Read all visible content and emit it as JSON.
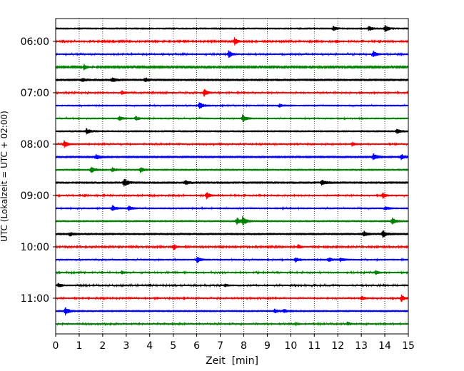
{
  "chart_data": {
    "type": "line",
    "title": "",
    "xlabel": "Zeit  [min]",
    "ylabel": "UTC (Lokalzeit = UTC + 02:00)",
    "xlim": [
      0,
      15
    ],
    "x_ticks": [
      0,
      1,
      2,
      3,
      4,
      5,
      6,
      7,
      8,
      9,
      10,
      11,
      12,
      13,
      14,
      15
    ],
    "y_tick_labels": [
      "06:00",
      "07:00",
      "08:00",
      "09:00",
      "10:00",
      "11:00"
    ],
    "grid": "vertical dotted",
    "legend": "none",
    "trace_colors": [
      "#000000",
      "#ff0000",
      "#0000ff",
      "#008000"
    ],
    "traces": [
      {
        "start": "05:45",
        "amplitude": 0.25,
        "events": [
          [
            11.8,
            0.5
          ],
          [
            13.3,
            0.6
          ],
          [
            14.0,
            0.9
          ]
        ]
      },
      {
        "start": "06:00",
        "amplitude": 0.18,
        "events": [
          [
            7.6,
            1.0
          ],
          [
            11.9,
            0.4
          ]
        ]
      },
      {
        "start": "06:15",
        "amplitude": 0.2,
        "events": [
          [
            7.35,
            1.0
          ],
          [
            13.5,
            0.9
          ]
        ]
      },
      {
        "start": "06:30",
        "amplitude": 0.15,
        "events": [
          [
            1.2,
            0.9
          ]
        ]
      },
      {
        "start": "06:45",
        "amplitude": 0.3,
        "events": [
          [
            1.1,
            0.45
          ],
          [
            2.4,
            0.5
          ],
          [
            3.8,
            0.5
          ]
        ]
      },
      {
        "start": "07:00",
        "amplitude": 0.2,
        "events": [
          [
            2.8,
            0.6
          ],
          [
            6.3,
            1.0
          ]
        ]
      },
      {
        "start": "07:15",
        "amplitude": 0.22,
        "events": [
          [
            6.1,
            1.0
          ],
          [
            9.5,
            0.4
          ]
        ]
      },
      {
        "start": "07:30",
        "amplitude": 0.22,
        "events": [
          [
            2.7,
            0.5
          ],
          [
            3.4,
            0.5
          ],
          [
            7.95,
            0.9
          ]
        ]
      },
      {
        "start": "07:45",
        "amplitude": 0.25,
        "events": [
          [
            1.3,
            0.7
          ],
          [
            14.5,
            0.6
          ]
        ]
      },
      {
        "start": "08:00",
        "amplitude": 0.2,
        "events": [
          [
            0.35,
            1.0
          ],
          [
            12.6,
            0.5
          ]
        ]
      },
      {
        "start": "08:15",
        "amplitude": 0.3,
        "events": [
          [
            1.7,
            0.6
          ],
          [
            13.5,
            0.8
          ],
          [
            14.7,
            0.6
          ]
        ]
      },
      {
        "start": "08:30",
        "amplitude": 0.25,
        "events": [
          [
            1.5,
            0.8
          ],
          [
            3.6,
            0.6
          ],
          [
            2.4,
            0.5
          ]
        ]
      },
      {
        "start": "08:45",
        "amplitude": 0.3,
        "events": [
          [
            2.9,
            1.0
          ],
          [
            5.5,
            0.5
          ],
          [
            11.3,
            0.6
          ]
        ]
      },
      {
        "start": "09:00",
        "amplitude": 0.2,
        "events": [
          [
            6.4,
            1.0
          ],
          [
            13.9,
            0.7
          ]
        ]
      },
      {
        "start": "09:15",
        "amplitude": 0.22,
        "events": [
          [
            2.4,
            0.8
          ],
          [
            3.1,
            0.6
          ],
          [
            14.0,
            0.5
          ]
        ]
      },
      {
        "start": "09:30",
        "amplitude": 0.25,
        "events": [
          [
            7.7,
            0.9
          ],
          [
            7.95,
            1.0
          ],
          [
            14.3,
            0.8
          ]
        ]
      },
      {
        "start": "09:45",
        "amplitude": 0.28,
        "events": [
          [
            0.6,
            0.5
          ],
          [
            13.1,
            0.7
          ],
          [
            13.9,
            0.9
          ]
        ]
      },
      {
        "start": "10:00",
        "amplitude": 0.18,
        "events": [
          [
            5.0,
            0.9
          ],
          [
            10.3,
            0.6
          ]
        ]
      },
      {
        "start": "10:15",
        "amplitude": 0.22,
        "events": [
          [
            6.0,
            0.8
          ],
          [
            10.2,
            0.6
          ],
          [
            11.6,
            0.6
          ],
          [
            12.1,
            0.5
          ]
        ]
      },
      {
        "start": "10:30",
        "amplitude": 0.2,
        "events": [
          [
            2.8,
            0.4
          ],
          [
            13.6,
            0.5
          ]
        ]
      },
      {
        "start": "10:45",
        "amplitude": 0.2,
        "events": [
          [
            0.1,
            0.6
          ],
          [
            7.2,
            0.4
          ]
        ]
      },
      {
        "start": "11:00",
        "amplitude": 0.2,
        "events": [
          [
            13.0,
            0.6
          ],
          [
            14.7,
            0.9
          ]
        ]
      },
      {
        "start": "11:15",
        "amplitude": 0.25,
        "events": [
          [
            0.4,
            1.0
          ],
          [
            9.3,
            0.5
          ],
          [
            9.7,
            0.5
          ]
        ]
      },
      {
        "start": "11:30",
        "amplitude": 0.2,
        "events": [
          [
            12.4,
            0.5
          ],
          [
            10.2,
            0.4
          ]
        ]
      }
    ]
  }
}
